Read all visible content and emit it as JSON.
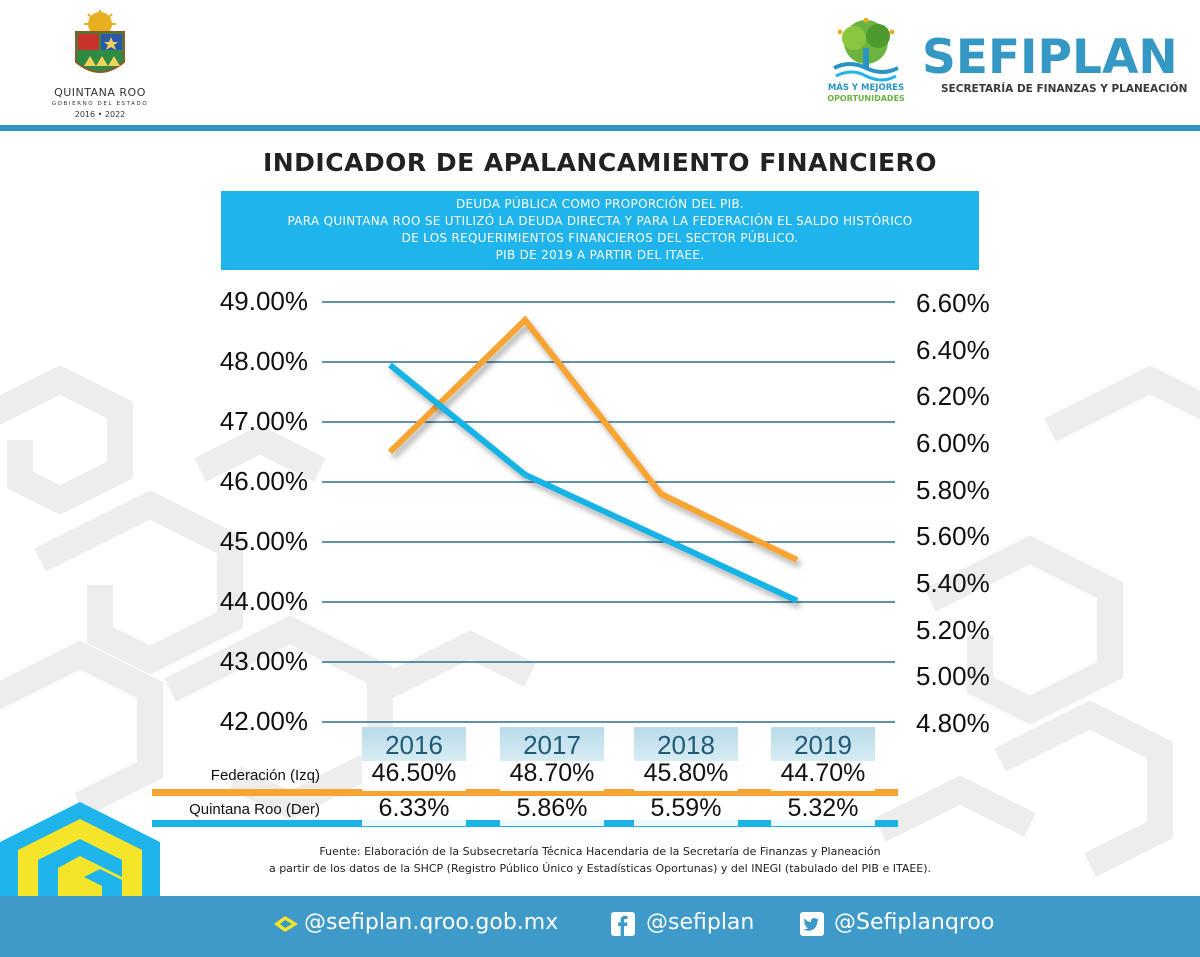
{
  "header": {
    "state_name": "QUINTANA ROO",
    "state_subtitle": "GOBIERNO DEL ESTADO",
    "state_years": "2016 • 2022",
    "agency_name": "SEFIPLAN",
    "agency_subtitle": "SECRETARÍA DE FINANZAS Y PLANEACIÓN",
    "slogan_line1": "MÁS Y MEJORES",
    "slogan_line2": "OPORTUNIDADES"
  },
  "colors": {
    "federacion": "#f7a433",
    "quintana_roo": "#19b3e6",
    "brand_blue": "#3d9ac9",
    "box_blue": "#1fb5ec"
  },
  "chart_data": {
    "type": "line",
    "title": "INDICADOR DE APALANCAMIENTO FINANCIERO",
    "subtitle_lines": [
      "DEUDA PÚBLICA COMO PROPORCIÓN DEL PIB.",
      "PARA QUINTANA ROO SE UTILIZÓ LA DEUDA DIRECTA Y PARA LA FEDERACIÓN EL SALDO HISTÓRICO",
      "DE LOS REQUERIMIENTOS FINANCIEROS DEL SECTOR PÚBLICO.",
      "PIB DE 2019 A PARTIR DEL ITAEE."
    ],
    "categories": [
      "2016",
      "2017",
      "2018",
      "2019"
    ],
    "series": [
      {
        "name": "Federación (Izq)",
        "axis": "left",
        "color": "#f7a433",
        "values": [
          46.5,
          48.7,
          45.8,
          44.7
        ],
        "labels": [
          "46.50%",
          "48.70%",
          "45.80%",
          "44.70%"
        ]
      },
      {
        "name": "Quintana Roo (Der)",
        "axis": "right",
        "color": "#19b3e6",
        "values": [
          6.33,
          5.86,
          5.59,
          5.32
        ],
        "labels": [
          "6.33%",
          "5.86%",
          "5.59%",
          "5.32%"
        ]
      }
    ],
    "y_left": {
      "range": [
        42,
        49
      ],
      "ticks": [
        "49.00%",
        "48.00%",
        "47.00%",
        "46.00%",
        "45.00%",
        "44.00%",
        "43.00%",
        "42.00%"
      ]
    },
    "y_right": {
      "range": [
        4.8,
        6.6
      ],
      "ticks": [
        "6.60%",
        "6.40%",
        "6.20%",
        "6.00%",
        "5.80%",
        "5.60%",
        "5.40%",
        "5.20%",
        "5.00%",
        "4.80%"
      ]
    },
    "grid": true,
    "legend": "data table below chart"
  },
  "source": {
    "line1": "Fuente: Elaboración de la Subsecretaría Técnica Hacendaria de la Secretaría de Finanzas y Planeación",
    "line2": "a partir de los datos de la SHCP (Registro Público Único y Estadísticas Oportunas) y del INEGI (tabulado del PIB e ITAEE)."
  },
  "footer": {
    "website": "@sefiplan.qroo.gob.mx",
    "facebook": "@sefiplan",
    "twitter": "@Sefiplanqroo",
    "website_icon": "sefiplan-logo-icon",
    "facebook_icon": "facebook-icon",
    "twitter_icon": "twitter-icon"
  }
}
